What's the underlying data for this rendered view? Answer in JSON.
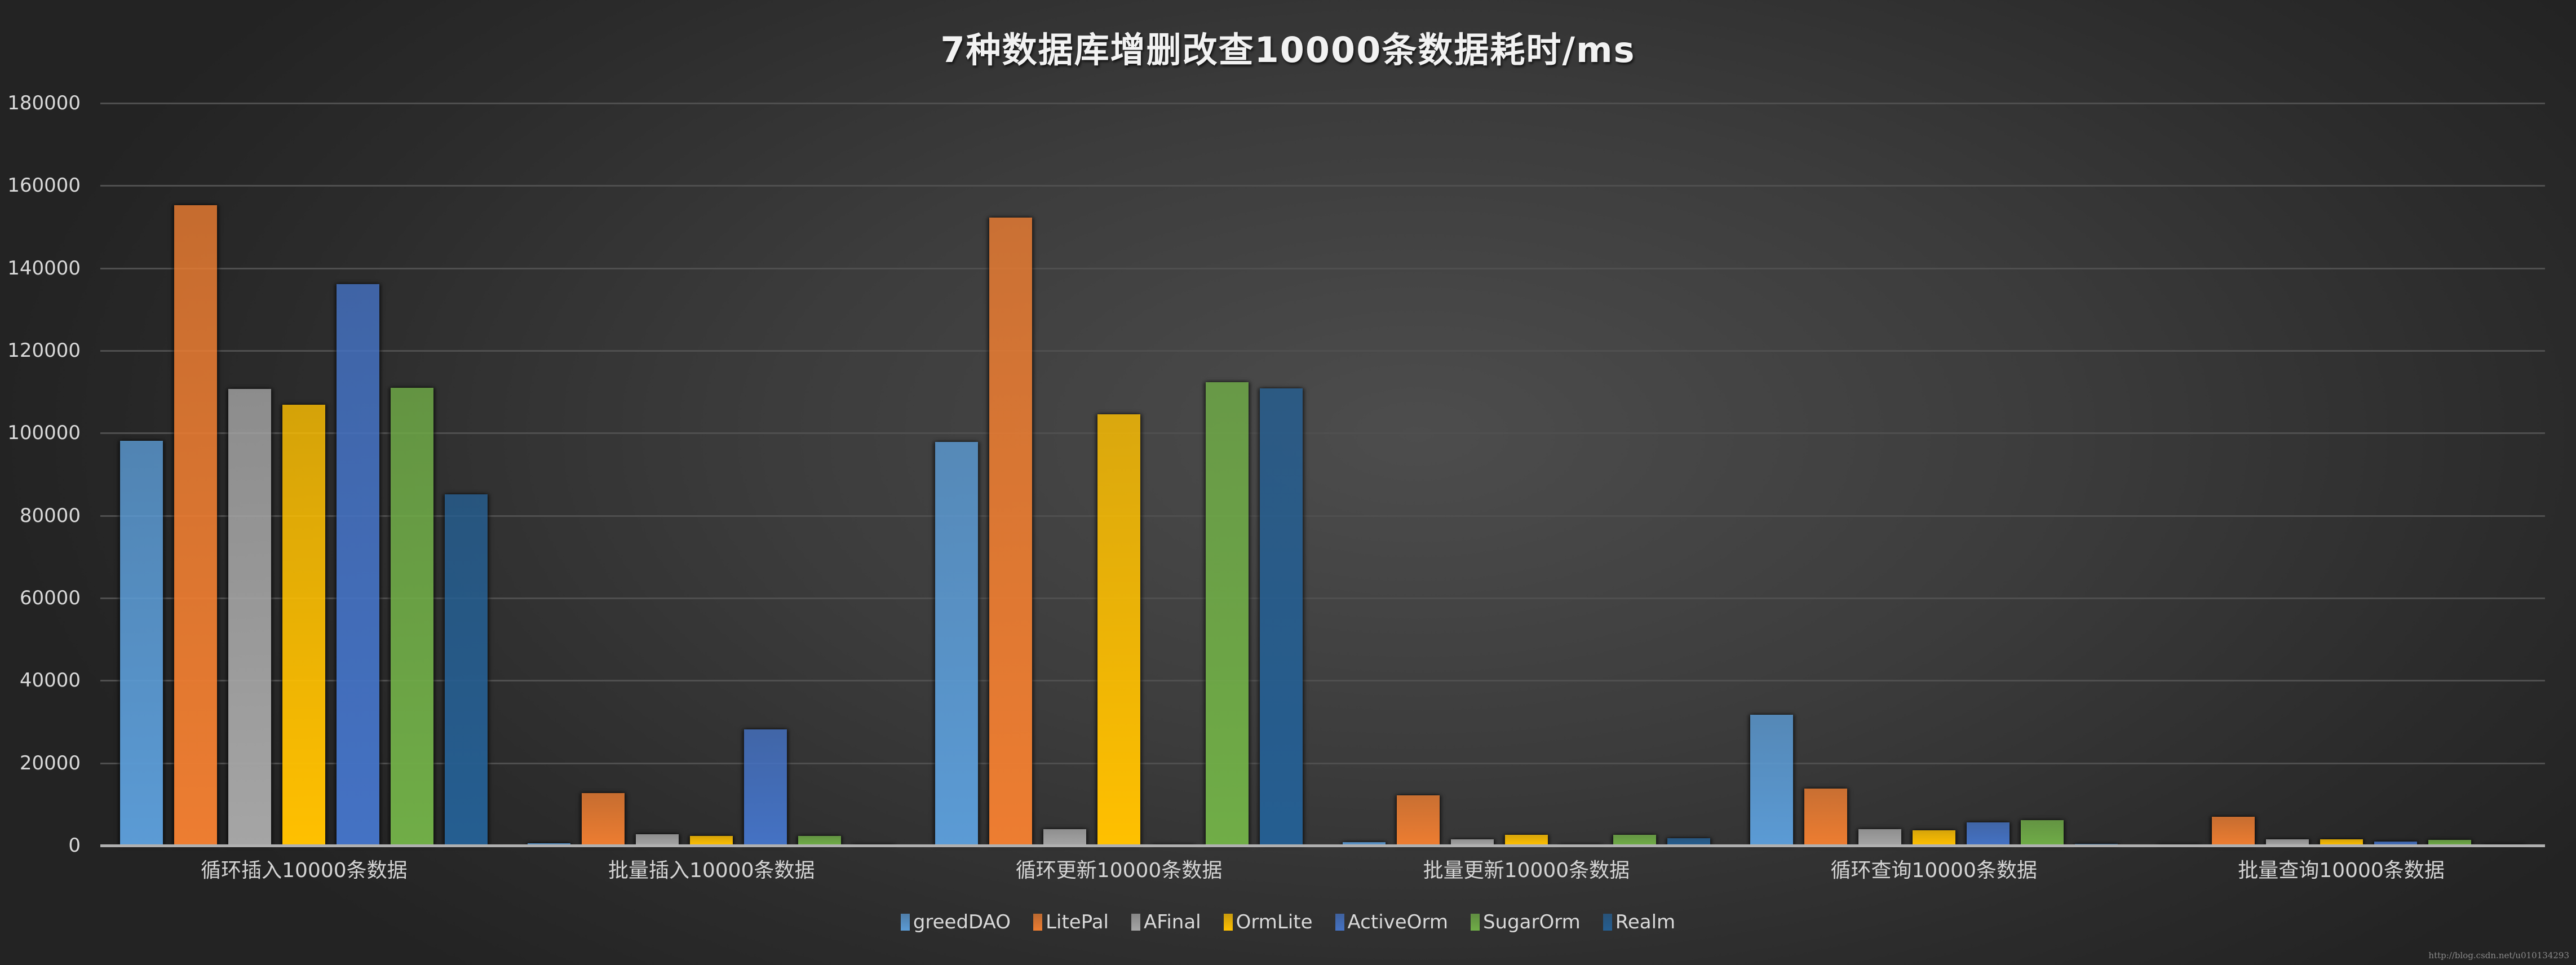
{
  "chart_data": {
    "type": "bar",
    "title": "7种数据库增删改查10000条数据耗时/ms",
    "xlabel": "",
    "ylabel": "",
    "ylim": [
      0,
      180000
    ],
    "yticks": [
      0,
      20000,
      40000,
      60000,
      80000,
      100000,
      120000,
      140000,
      160000,
      180000
    ],
    "grid": true,
    "legend_position": "bottom",
    "categories": [
      "循环插入10000条数据",
      "批量插入10000条数据",
      "循环更新10000条数据",
      "批量更新10000条数据",
      "循环查询10000条数据",
      "批量查询10000条数据"
    ],
    "series": [
      {
        "name": "greedDAO",
        "color": "#5b9bd5",
        "values": [
          98100,
          600,
          97800,
          800,
          31700,
          200
        ]
      },
      {
        "name": "LitePal",
        "color": "#ed7d31",
        "values": [
          155300,
          12700,
          152300,
          12100,
          13800,
          7000
        ]
      },
      {
        "name": "AFinal",
        "color": "#a5a5a5",
        "values": [
          110700,
          2800,
          4000,
          1500,
          4000,
          1500
        ]
      },
      {
        "name": "OrmLite",
        "color": "#ffc000",
        "values": [
          106900,
          2300,
          104600,
          2600,
          3700,
          1500
        ]
      },
      {
        "name": "ActiveOrm",
        "color": "#4472c4",
        "values": [
          136100,
          28200,
          100,
          100,
          5600,
          1000
        ]
      },
      {
        "name": "SugarOrm",
        "color": "#70ad47",
        "values": [
          111000,
          2300,
          112300,
          2600,
          6100,
          1300
        ]
      },
      {
        "name": "Realm",
        "color": "#255e91",
        "values": [
          85200,
          300,
          110900,
          1800,
          450,
          200
        ]
      }
    ]
  },
  "watermark": "http://blog.csdn.net/u010134293"
}
